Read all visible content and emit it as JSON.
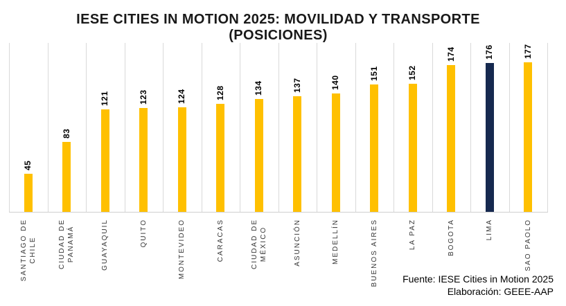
{
  "chart_data": {
    "type": "bar",
    "title": "IESE CITIES IN MOTION 2025: MOVILIDAD Y TRANSPORTE",
    "subtitle": "(POSICIONES)",
    "categories": [
      "SANTIAGO DE\nCHILE",
      "CIUDAD DE\nPANAMÁ",
      "GUAYAQUIL",
      "QUITO",
      "MONTEVIDEO",
      "CARACAS",
      "CIUDAD DE\nMÉXICO",
      "ASUNCIÓN",
      "MEDELLÍN",
      "BUENOS AIRES",
      "LA PAZ",
      "BOGOTA",
      "LIMA",
      "SAO PAOLO"
    ],
    "values": [
      45,
      83,
      121,
      123,
      124,
      128,
      134,
      137,
      140,
      151,
      152,
      174,
      176,
      177
    ],
    "ylim": [
      0,
      200
    ],
    "bar_color": "#FFC000",
    "highlight_index": 12,
    "highlight_color": "#16294F",
    "gridline_color": "#D9D9D9",
    "axis_line_color": "#CFCFCF",
    "value_label_color": "#000000",
    "category_label_color": "#333333",
    "grid": "vertical",
    "legend": "none",
    "source_note": "Fuente: IESE Cities in Motion 2025",
    "elaboration_note": "Elaboración: GEEE-AAP"
  }
}
